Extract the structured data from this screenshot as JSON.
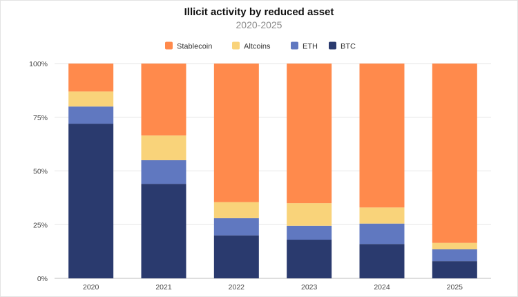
{
  "chart_data": {
    "type": "bar",
    "stacked": true,
    "title": "Illicit activity by reduced asset",
    "subtitle": "2020-2025",
    "categories": [
      "2020",
      "2021",
      "2022",
      "2023",
      "2024",
      "2025"
    ],
    "series": [
      {
        "name": "BTC",
        "color": "#2a3a6e",
        "values": [
          72,
          44,
          20,
          18,
          16,
          8
        ]
      },
      {
        "name": "ETH",
        "color": "#6078c0",
        "values": [
          8,
          11,
          8,
          6.5,
          9.5,
          5.5
        ]
      },
      {
        "name": "Altcoins",
        "color": "#f9d37a",
        "values": [
          7,
          11.5,
          7.5,
          10.5,
          7.5,
          3
        ]
      },
      {
        "name": "Stablecoin",
        "color": "#ff8a4c",
        "values": [
          13,
          33.5,
          64.5,
          65,
          67,
          83.5
        ]
      }
    ],
    "legend_order": [
      "Stablecoin",
      "Altcoins",
      "ETH",
      "BTC"
    ],
    "legend_position": "top-center",
    "y_ticks": [
      "0%",
      "25%",
      "50%",
      "75%",
      "100%"
    ],
    "ylim": [
      0,
      100
    ],
    "grid": true,
    "xlabel": "",
    "ylabel": ""
  }
}
